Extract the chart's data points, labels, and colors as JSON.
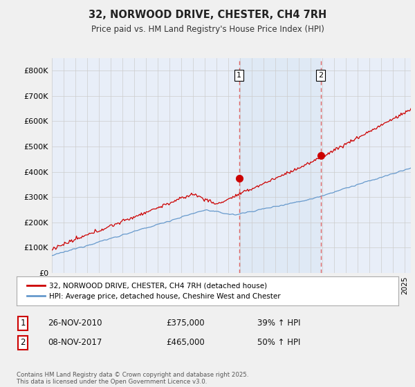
{
  "title": "32, NORWOOD DRIVE, CHESTER, CH4 7RH",
  "subtitle": "Price paid vs. HM Land Registry's House Price Index (HPI)",
  "ylabel_ticks": [
    "£0",
    "£100K",
    "£200K",
    "£300K",
    "£400K",
    "£500K",
    "£600K",
    "£700K",
    "£800K"
  ],
  "ytick_values": [
    0,
    100000,
    200000,
    300000,
    400000,
    500000,
    600000,
    700000,
    800000
  ],
  "ylim": [
    0,
    850000
  ],
  "xlim_start": 1995.0,
  "xlim_end": 2025.5,
  "transaction1_x": 2010.9,
  "transaction1_y": 375000,
  "transaction2_x": 2017.85,
  "transaction2_y": 465000,
  "legend_line1": "32, NORWOOD DRIVE, CHESTER, CH4 7RH (detached house)",
  "legend_line2": "HPI: Average price, detached house, Cheshire West and Chester",
  "annotation1_num": "1",
  "annotation1_date": "26-NOV-2010",
  "annotation1_price": "£375,000",
  "annotation1_hpi": "39% ↑ HPI",
  "annotation2_num": "2",
  "annotation2_date": "08-NOV-2017",
  "annotation2_price": "£465,000",
  "annotation2_hpi": "50% ↑ HPI",
  "footer": "Contains HM Land Registry data © Crown copyright and database right 2025.\nThis data is licensed under the Open Government Licence v3.0.",
  "color_red": "#cc0000",
  "color_blue": "#6699cc",
  "color_blue_fill": "#dce8f5",
  "background_plot": "#e8eef8",
  "background_fig": "#f0f0f0",
  "grid_color": "#cccccc",
  "dashed_color": "#dd6666"
}
